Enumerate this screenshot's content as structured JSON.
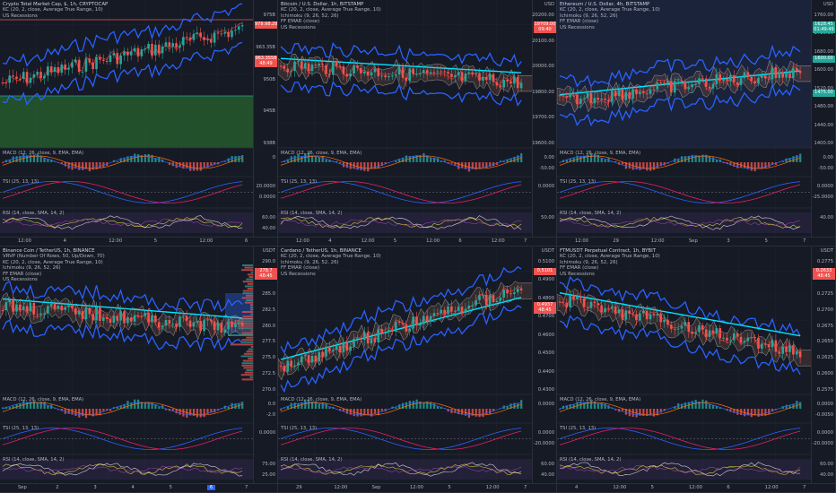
{
  "colors": {
    "up": "#26a69a",
    "down": "#ef5350",
    "band": "#2962ff",
    "ema": "#00e5ff",
    "cloud": "#9e9e9e",
    "bg": "#131722"
  },
  "panels": [
    {
      "id": "total",
      "axis_unit": "",
      "overlays": [
        "Crypto Total Market Cap, $, 1h, CRYPTOCAP",
        "KC (20, 2, close, Average True Range, 10)",
        "US Recessions"
      ],
      "price_ticks": [
        "975B",
        "963.35B",
        "950B",
        "945B",
        "938B"
      ],
      "tags": [
        {
          "text": "978.98.29",
          "color": "#ef5350"
        },
        {
          "text": "963.355B\n48:49",
          "color": "#ef5350"
        }
      ],
      "macd": "MACD (12, 26, close, 9, EMA, EMA)",
      "macd_ticks": [
        "0"
      ],
      "tsi": "TSI (25, 13, 13)",
      "tsi_ticks": [
        "20.0000",
        "0.0000"
      ],
      "rsi": "RSI (14, close, SMA, 14, 2)",
      "rsi_ticks": [
        "60.00",
        "40.00"
      ],
      "x_ticks": [
        "12:00",
        "4",
        "12:00",
        "5",
        "12:00",
        "6"
      ]
    },
    {
      "id": "btc",
      "axis_unit": "USD",
      "overlays": [
        "Bitcoin / U.S. Dollar, 1h, BITSTAMP",
        "KC (20, 2, close, Average True Range, 10)",
        "Ichimoku (9, 26, 52, 26)",
        "FF EMAR (close)",
        "US Recessions"
      ],
      "price_ticks": [
        "20200.00",
        "20100.00",
        "20000.00",
        "19800.00",
        "19700.00",
        "19600.00"
      ],
      "tags": [
        {
          "text": "19709.00\n09:40",
          "color": "#ef5350"
        }
      ],
      "macd": "MACD (12, 26, close, 9, EMA, EMA)",
      "macd_ticks": [
        "0.00",
        "-50.00"
      ],
      "tsi": "TSI (25, 13, 13)",
      "tsi_ticks": [
        "0.0000"
      ],
      "rsi": "RSI (14, close, SMA, 14, 2)",
      "rsi_ticks": [
        "50.00"
      ],
      "x_ticks": [
        "12:00",
        "4",
        "12:00",
        "5",
        "12:00",
        "6",
        "12:00",
        "7"
      ]
    },
    {
      "id": "eth",
      "axis_unit": "USD",
      "overlays": [
        "Ethereum / U.S. Dollar, 4h, BITSTAMP",
        "KC (20, 2, close, Average True Range, 10)",
        "Ichimoku (9, 26, 52, 26)",
        "FF EMAR (close)",
        "US Recessions"
      ],
      "price_ticks": [
        "1760.00",
        "1720.00",
        "1680.00",
        "1600.00",
        "1520.00",
        "1480.00",
        "1440.00",
        "1400.00"
      ],
      "tags": [
        {
          "text": "1628.45\n01:49:49",
          "color": "#26a69a"
        },
        {
          "text": "1600.00",
          "color": "#26a69a"
        },
        {
          "text": "1475.00",
          "color": "#26a69a"
        }
      ],
      "macd": "MACD (12, 26, close, 9, EMA, EMA)",
      "macd_ticks": [
        "0.00",
        "-50.00"
      ],
      "tsi": "TSI (25, 13, 13)",
      "tsi_ticks": [
        "0.0000",
        "-25.0000"
      ],
      "rsi": "RSI (14, close, SMA, 14, 2)",
      "rsi_ticks": [
        "40.00"
      ],
      "x_ticks": [
        "12:00",
        "29",
        "12:00",
        "Sep",
        "3",
        "5",
        "7"
      ]
    },
    {
      "id": "bnb",
      "axis_unit": "USDT",
      "overlays": [
        "Binance Coin / TetherUS, 1h, BINANCE",
        "VRVP (Number Of Rows, 50, Up/Down, 70)",
        "KC (20, 2, close, Average True Range, 10)",
        "Ichimoku (9, 26, 52, 26)",
        "FF EMAR (close)",
        "US Recessions"
      ],
      "price_ticks": [
        "290.0",
        "287.5",
        "285.0",
        "282.5",
        "280.0",
        "277.5",
        "275.0",
        "272.5",
        "270.0"
      ],
      "tags": [
        {
          "text": "278.7\n48:45",
          "color": "#ef5350"
        }
      ],
      "macd": "MACD (12, 26, close, 9, EMA, EMA)",
      "macd_ticks": [
        "0.0",
        "-2.0"
      ],
      "tsi": "TSI (25, 13, 13)",
      "tsi_ticks": [
        "0.0000"
      ],
      "rsi": "RSI (14, close, SMA, 14, 2)",
      "rsi_ticks": [
        "75.00",
        "25.00"
      ],
      "x_ticks": [
        "Sep",
        "2",
        "3",
        "4",
        "5",
        "6",
        "7"
      ]
    },
    {
      "id": "ada",
      "axis_unit": "USDT",
      "overlays": [
        "Cardano / TetherUS, 1h, BINANCE",
        "KC (20, 2, close, Average True Range, 10)",
        "Ichimoku (9, 26, 52, 26)",
        "FF EMAR (close)",
        "US Recessions"
      ],
      "price_ticks": [
        "0.5100",
        "0.4900",
        "0.4800",
        "0.4700",
        "0.4600",
        "0.4500",
        "0.4400",
        "0.4300"
      ],
      "tags": [
        {
          "text": "0.5101",
          "color": "#ef5350"
        },
        {
          "text": "0.4937\n48:45",
          "color": "#ef5350"
        }
      ],
      "macd": "MACD (12, 26, close, 9, EMA, EMA)",
      "macd_ticks": [
        "0.0000"
      ],
      "tsi": "TSI (25, 13, 13)",
      "tsi_ticks": [
        "0.0000",
        "-20.0000"
      ],
      "rsi": "RSI (14, close, SMA, 14, 2)",
      "rsi_ticks": [
        "60.00",
        "40.00"
      ],
      "x_ticks": [
        "29",
        "12:00",
        "Sep",
        "12:00",
        "5",
        "12:00",
        "7"
      ]
    },
    {
      "id": "ftm",
      "axis_unit": "USDT",
      "overlays": [
        "FTMUSDT Perpetual Contract, 1h, BYBIT",
        "KC (20, 2, close, Average True Range, 10)",
        "Ichimoku (9, 26, 52, 26)",
        "FF EMAR (close)",
        "US Recessions"
      ],
      "price_ticks": [
        "0.2775",
        "0.2750",
        "0.2725",
        "0.2700",
        "0.2675",
        "0.2650",
        "0.2625",
        "0.2600",
        "0.2575"
      ],
      "tags": [
        {
          "text": "0.2633\n48:45",
          "color": "#ef5350"
        }
      ],
      "macd": "MACD (12, 26, close, 9, EMA, EMA)",
      "macd_ticks": [
        "0.0000",
        "-0.0050"
      ],
      "tsi": "TSI (25, 13, 13)",
      "tsi_ticks": [
        "0.0000",
        "-20.0000"
      ],
      "rsi": "RSI (14, close, SMA, 14, 2)",
      "rsi_ticks": [
        "60.00",
        "40.00"
      ],
      "x_ticks": [
        "4",
        "12:00",
        "5",
        "12:00",
        "6",
        "12:00",
        "7"
      ]
    }
  ]
}
